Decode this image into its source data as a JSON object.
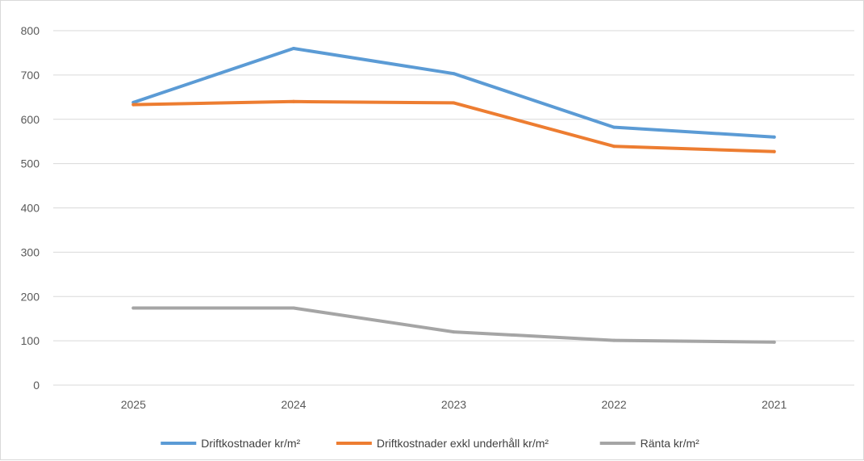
{
  "chart_data": {
    "type": "line",
    "categories": [
      "2025",
      "2024",
      "2023",
      "2022",
      "2021"
    ],
    "ylim": [
      0,
      800
    ],
    "yticks": [
      0,
      100,
      200,
      300,
      400,
      500,
      600,
      700,
      800
    ],
    "ytick_labels": [
      "0",
      "100",
      "200",
      "300",
      "400",
      "500",
      "600",
      "700",
      "800"
    ],
    "grid": true,
    "legend_position": "bottom",
    "series": [
      {
        "name": "Driftkostnader kr/m²",
        "color": "#5b9bd5",
        "values": [
          638,
          760,
          703,
          582,
          560
        ]
      },
      {
        "name": "Driftkostnader exkl underhåll kr/m²",
        "color": "#ed7d31",
        "values": [
          633,
          640,
          637,
          539,
          527
        ]
      },
      {
        "name": "Ränta kr/m²",
        "color": "#a5a5a5",
        "values": [
          174,
          174,
          120,
          101,
          97
        ]
      }
    ]
  }
}
